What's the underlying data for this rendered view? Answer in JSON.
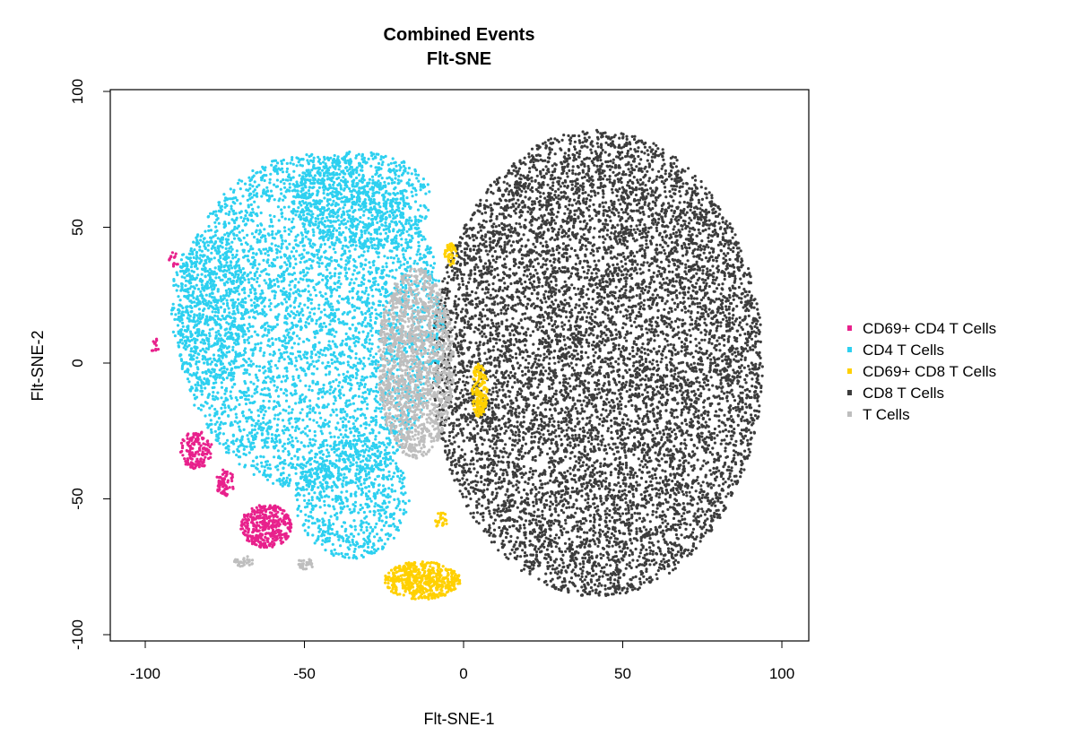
{
  "chart_data": {
    "type": "scatter",
    "title": "Combined Events",
    "subtitle": "Flt-SNE",
    "xlabel": "Flt-SNE-1",
    "ylabel": "Flt-SNE-2",
    "xlim": [
      -110,
      110
    ],
    "ylim": [
      -100,
      100
    ],
    "xticks": [
      -100,
      -50,
      0,
      50,
      100
    ],
    "yticks": [
      -100,
      -50,
      0,
      50,
      100
    ],
    "grid": false,
    "legend_position": "right",
    "series": [
      {
        "name": "CD69+ CD4 T Cells",
        "color": "#e8218c",
        "clusters": [
          {
            "cx": -62,
            "cy": -60,
            "rx": 8,
            "ry": 8,
            "n": 380
          },
          {
            "cx": -84,
            "cy": -32,
            "rx": 5,
            "ry": 7,
            "n": 150
          },
          {
            "cx": -75,
            "cy": -44,
            "rx": 3,
            "ry": 5,
            "n": 70
          },
          {
            "cx": -91,
            "cy": 38,
            "rx": 1.5,
            "ry": 3,
            "n": 14
          },
          {
            "cx": -97,
            "cy": 7,
            "rx": 1.5,
            "ry": 3,
            "n": 12
          }
        ]
      },
      {
        "name": "CD4 T Cells",
        "color": "#2dd0f0",
        "clusters": [
          {
            "cx": -48,
            "cy": 15,
            "rx": 42,
            "ry": 62,
            "n": 4200
          },
          {
            "cx": -32,
            "cy": 60,
            "rx": 22,
            "ry": 18,
            "n": 700
          },
          {
            "cx": -35,
            "cy": -50,
            "rx": 18,
            "ry": 22,
            "n": 700
          },
          {
            "cx": -80,
            "cy": 20,
            "rx": 12,
            "ry": 28,
            "n": 500
          }
        ]
      },
      {
        "name": "CD69+ CD8 T Cells",
        "color": "#ffd000",
        "clusters": [
          {
            "cx": -13,
            "cy": -80,
            "rx": 12,
            "ry": 7,
            "n": 520
          },
          {
            "cx": 5,
            "cy": -10,
            "rx": 2.5,
            "ry": 10,
            "n": 160
          },
          {
            "cx": -4,
            "cy": 40,
            "rx": 2,
            "ry": 4,
            "n": 40
          },
          {
            "cx": -7,
            "cy": -58,
            "rx": 2,
            "ry": 3,
            "n": 25
          }
        ]
      },
      {
        "name": "CD8 T Cells",
        "color": "#3c3c3c",
        "clusters": [
          {
            "cx": 42,
            "cy": 0,
            "rx": 52,
            "ry": 86,
            "n": 9000
          }
        ]
      },
      {
        "name": "T Cells",
        "color": "#bebebe",
        "clusters": [
          {
            "cx": -15,
            "cy": 0,
            "rx": 12,
            "ry": 35,
            "n": 1500
          },
          {
            "cx": -69,
            "cy": -73,
            "rx": 3,
            "ry": 2,
            "n": 35
          },
          {
            "cx": -50,
            "cy": -74,
            "rx": 3,
            "ry": 2,
            "n": 30
          }
        ]
      }
    ]
  }
}
